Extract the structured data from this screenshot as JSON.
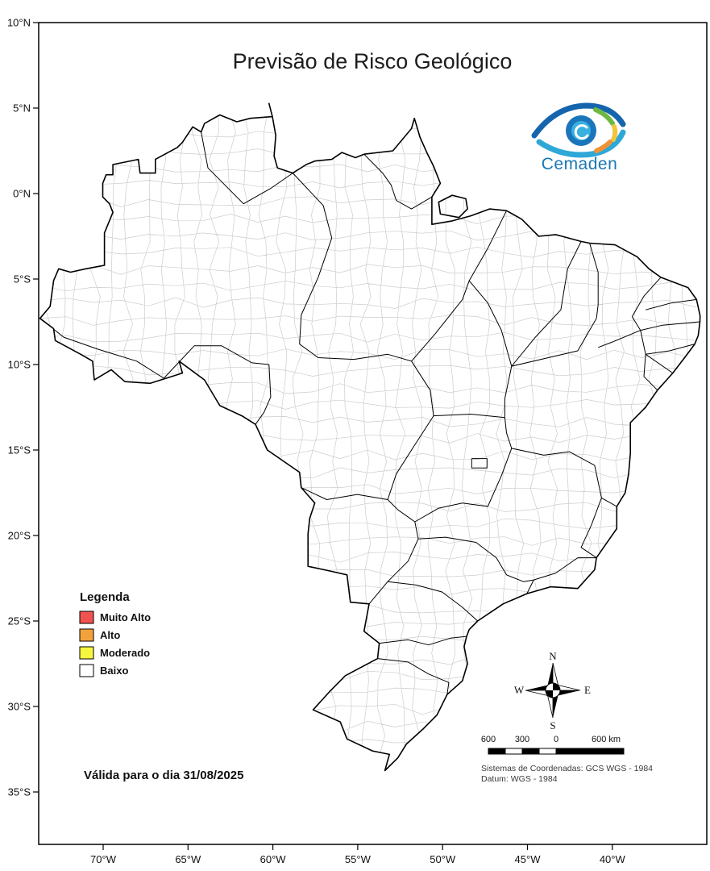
{
  "title": "Previsão de Risco Geológico",
  "logo": {
    "text": "Cemaden"
  },
  "legend": {
    "title": "Legenda",
    "items": [
      {
        "label": "Muito Alto",
        "color": "#f0524f"
      },
      {
        "label": "Alto",
        "color": "#f2a23d"
      },
      {
        "label": "Moderado",
        "color": "#f6f63f"
      },
      {
        "label": "Baixo",
        "color": "#ffffff"
      }
    ]
  },
  "validity_text": "Válida para o dia 31/08/2025",
  "compass": {
    "north": "N",
    "south": "S",
    "east": "E",
    "west": "W"
  },
  "scale_bar": {
    "ticks": [
      "600",
      "300",
      "0",
      "600 km"
    ]
  },
  "crs_lines": [
    "Sistemas de Coordenadas: GCS WGS - 1984",
    "Datum: WGS - 1984"
  ],
  "axis": {
    "latitudes": [
      "10°N",
      "5°N",
      "0°N",
      "5°S",
      "10°S",
      "15°S",
      "20°S",
      "25°S",
      "30°S",
      "35°S"
    ],
    "longitudes": [
      "70°W",
      "65°W",
      "60°W",
      "55°W",
      "50°W",
      "45°W",
      "40°W"
    ]
  },
  "map_shapes": {
    "country": [
      [
        5.27,
        -60.2
      ],
      [
        4.5,
        -60.0
      ],
      [
        4.4,
        -61.3
      ],
      [
        4.2,
        -62.1
      ],
      [
        4.6,
        -63.1
      ],
      [
        4.1,
        -64.0
      ],
      [
        3.6,
        -64.2
      ],
      [
        3.9,
        -64.7
      ],
      [
        3.0,
        -65.3
      ],
      [
        2.7,
        -65.6
      ],
      [
        2.0,
        -66.9
      ],
      [
        1.2,
        -66.9
      ],
      [
        1.2,
        -67.8
      ],
      [
        2.0,
        -67.9
      ],
      [
        1.7,
        -69.4
      ],
      [
        1.1,
        -69.4
      ],
      [
        1.1,
        -69.8
      ],
      [
        0.6,
        -70.0
      ],
      [
        -0.2,
        -70.0
      ],
      [
        -0.6,
        -69.6
      ],
      [
        -1.1,
        -69.4
      ],
      [
        -2.3,
        -69.9
      ],
      [
        -4.2,
        -69.9
      ],
      [
        -4.4,
        -71.0
      ],
      [
        -4.6,
        -71.9
      ],
      [
        -4.4,
        -72.6
      ],
      [
        -5.1,
        -72.9
      ],
      [
        -6.6,
        -73.1
      ],
      [
        -7.3,
        -73.7
      ],
      [
        -7.9,
        -72.9
      ],
      [
        -8.6,
        -72.8
      ],
      [
        -9.4,
        -71.3
      ],
      [
        -9.8,
        -70.6
      ],
      [
        -10.9,
        -70.5
      ],
      [
        -10.3,
        -69.5
      ],
      [
        -11.0,
        -68.7
      ],
      [
        -11.1,
        -67.2
      ],
      [
        -10.5,
        -65.3
      ],
      [
        -9.8,
        -65.5
      ],
      [
        -10.9,
        -64.0
      ],
      [
        -12.4,
        -63.1
      ],
      [
        -13.0,
        -61.8
      ],
      [
        -13.5,
        -61.0
      ],
      [
        -15.0,
        -60.3
      ],
      [
        -16.3,
        -58.4
      ],
      [
        -17.2,
        -58.3
      ],
      [
        -18.1,
        -57.5
      ],
      [
        -19.0,
        -57.8
      ],
      [
        -19.9,
        -57.9
      ],
      [
        -21.8,
        -57.9
      ],
      [
        -22.1,
        -56.5
      ],
      [
        -22.3,
        -55.6
      ],
      [
        -23.9,
        -55.4
      ],
      [
        -24.0,
        -54.3
      ],
      [
        -25.6,
        -54.6
      ],
      [
        -26.3,
        -53.7
      ],
      [
        -27.2,
        -53.8
      ],
      [
        -28.2,
        -55.7
      ],
      [
        -29.1,
        -56.6
      ],
      [
        -30.2,
        -57.6
      ],
      [
        -30.9,
        -56.0
      ],
      [
        -31.9,
        -55.6
      ],
      [
        -32.6,
        -54.1
      ],
      [
        -32.8,
        -53.1
      ],
      [
        -33.75,
        -53.37
      ],
      [
        -33.0,
        -52.6
      ],
      [
        -32.2,
        -52.1
      ],
      [
        -31.3,
        -51.1
      ],
      [
        -30.5,
        -50.3
      ],
      [
        -29.3,
        -49.7
      ],
      [
        -28.5,
        -48.8
      ],
      [
        -27.5,
        -48.5
      ],
      [
        -26.5,
        -48.7
      ],
      [
        -25.9,
        -48.55
      ],
      [
        -25.5,
        -48.4
      ],
      [
        -25.0,
        -47.9
      ],
      [
        -24.0,
        -46.4
      ],
      [
        -23.4,
        -45.0
      ],
      [
        -23.0,
        -43.6
      ],
      [
        -23.1,
        -42.0
      ],
      [
        -22.0,
        -41.0
      ],
      [
        -21.3,
        -40.9
      ],
      [
        -20.3,
        -40.2
      ],
      [
        -19.6,
        -39.7
      ],
      [
        -18.3,
        -39.7
      ],
      [
        -17.5,
        -39.2
      ],
      [
        -16.4,
        -39.0
      ],
      [
        -15.2,
        -38.9
      ],
      [
        -13.4,
        -38.9
      ],
      [
        -13.0,
        -38.5
      ],
      [
        -12.5,
        -38.0
      ],
      [
        -11.5,
        -37.3
      ],
      [
        -10.5,
        -36.4
      ],
      [
        -9.6,
        -35.7
      ],
      [
        -8.8,
        -35.1
      ],
      [
        -8.3,
        -34.9
      ],
      [
        -7.5,
        -34.8
      ],
      [
        -7.15,
        -34.79
      ],
      [
        -6.2,
        -35.0
      ],
      [
        -5.5,
        -35.5
      ],
      [
        -4.9,
        -37.1
      ],
      [
        -4.4,
        -37.8
      ],
      [
        -3.7,
        -38.5
      ],
      [
        -3.0,
        -39.8
      ],
      [
        -2.9,
        -41.3
      ],
      [
        -2.8,
        -41.8
      ],
      [
        -2.4,
        -43.3
      ],
      [
        -2.5,
        -44.3
      ],
      [
        -1.5,
        -45.3
      ],
      [
        -1.0,
        -46.2
      ],
      [
        -0.9,
        -47.2
      ],
      [
        -1.3,
        -48.3
      ],
      [
        -1.6,
        -49.4
      ],
      [
        -1.8,
        -50.6
      ],
      [
        -0.2,
        -50.6
      ],
      [
        0.6,
        -50.1
      ],
      [
        1.6,
        -50.5
      ],
      [
        2.4,
        -50.9
      ],
      [
        3.3,
        -51.3
      ],
      [
        4.4,
        -51.63
      ],
      [
        3.8,
        -51.8
      ],
      [
        2.5,
        -52.9
      ],
      [
        2.3,
        -54.6
      ],
      [
        2.1,
        -55.1
      ],
      [
        2.4,
        -55.9
      ],
      [
        2.0,
        -56.5
      ],
      [
        1.9,
        -57.5
      ],
      [
        1.7,
        -58.0
      ],
      [
        1.2,
        -58.8
      ],
      [
        1.5,
        -59.7
      ],
      [
        2.2,
        -59.9
      ],
      [
        3.4,
        -59.8
      ],
      [
        4.5,
        -60.0
      ]
    ],
    "island": [
      [
        -0.3,
        -48.6
      ],
      [
        -0.9,
        -48.5
      ],
      [
        -1.4,
        -49.0
      ],
      [
        -1.2,
        -50.1
      ],
      [
        -0.5,
        -50.2
      ],
      [
        -0.1,
        -49.4
      ]
    ],
    "states": [
      [
        [
          3.6,
          -64.2
        ],
        [
          1.5,
          -63.8
        ],
        [
          -0.6,
          -61.7
        ],
        [
          0.3,
          -60.1
        ],
        [
          1.2,
          -58.8
        ]
      ],
      [
        [
          1.2,
          -58.8
        ],
        [
          -0.7,
          -57.0
        ],
        [
          -2.6,
          -56.5
        ],
        [
          -4.9,
          -57.3
        ],
        [
          -7.1,
          -58.3
        ]
      ],
      [
        [
          -7.1,
          -58.3
        ],
        [
          -8.8,
          -58.4
        ],
        [
          -9.6,
          -57.3
        ],
        [
          -9.7,
          -55.2
        ],
        [
          -9.4,
          -53.2
        ],
        [
          -9.8,
          -51.8
        ]
      ],
      [
        [
          -9.8,
          -51.8
        ],
        [
          -8.2,
          -50.4
        ],
        [
          -6.2,
          -48.8
        ],
        [
          -5.1,
          -48.4
        ],
        [
          -3.2,
          -47.3
        ],
        [
          -1.0,
          -46.2
        ]
      ],
      [
        [
          -7.3,
          -73.7
        ],
        [
          -8.4,
          -72.3
        ],
        [
          -9.1,
          -70.3
        ],
        [
          -9.8,
          -68.0
        ],
        [
          -10.8,
          -66.4
        ]
      ],
      [
        [
          -10.8,
          -66.4
        ],
        [
          -8.9,
          -64.6
        ],
        [
          -8.9,
          -63.0
        ],
        [
          -9.9,
          -61.2
        ],
        [
          -10.0,
          -60.2
        ]
      ],
      [
        [
          -10.0,
          -60.2
        ],
        [
          -11.9,
          -60.1
        ],
        [
          -12.8,
          -60.5
        ],
        [
          -13.5,
          -61.0
        ]
      ],
      [
        [
          -9.8,
          -51.8
        ],
        [
          -11.5,
          -50.7
        ],
        [
          -13.0,
          -50.5
        ],
        [
          -15.0,
          -51.8
        ],
        [
          -16.4,
          -52.7
        ],
        [
          -17.9,
          -53.2
        ]
      ],
      [
        [
          -17.9,
          -53.2
        ],
        [
          -17.6,
          -55.0
        ],
        [
          -17.9,
          -56.8
        ],
        [
          -17.2,
          -58.3
        ]
      ],
      [
        [
          -5.1,
          -48.4
        ],
        [
          -6.4,
          -47.3
        ],
        [
          -8.0,
          -46.5
        ],
        [
          -10.1,
          -45.9
        ],
        [
          -12.0,
          -46.3
        ],
        [
          -13.1,
          -46.3
        ]
      ],
      [
        [
          -13.1,
          -46.3
        ],
        [
          -12.9,
          -48.3
        ],
        [
          -13.0,
          -50.5
        ]
      ],
      [
        [
          -2.8,
          -41.8
        ],
        [
          -4.4,
          -42.6
        ],
        [
          -6.8,
          -43.0
        ],
        [
          -8.4,
          -44.5
        ],
        [
          -10.1,
          -45.9
        ]
      ],
      [
        [
          -2.9,
          -41.3
        ],
        [
          -4.6,
          -40.8
        ],
        [
          -6.5,
          -40.8
        ],
        [
          -7.3,
          -40.9
        ]
      ],
      [
        [
          -7.3,
          -40.9
        ],
        [
          -9.2,
          -42.0
        ],
        [
          -10.1,
          -45.9
        ]
      ],
      [
        [
          -4.9,
          -37.1
        ],
        [
          -6.0,
          -38.1
        ],
        [
          -7.2,
          -38.8
        ]
      ],
      [
        [
          -6.2,
          -35.0
        ],
        [
          -6.4,
          -36.5
        ],
        [
          -6.8,
          -38.0
        ]
      ],
      [
        [
          -7.5,
          -34.8
        ],
        [
          -7.7,
          -37.0
        ],
        [
          -8.0,
          -38.3
        ],
        [
          -7.2,
          -38.8
        ]
      ],
      [
        [
          -8.0,
          -38.3
        ],
        [
          -8.7,
          -40.0
        ],
        [
          -9.0,
          -40.8
        ]
      ],
      [
        [
          -8.8,
          -35.1
        ],
        [
          -9.2,
          -36.6
        ],
        [
          -9.4,
          -38.0
        ],
        [
          -8.0,
          -38.3
        ]
      ],
      [
        [
          -9.4,
          -38.0
        ],
        [
          -10.5,
          -36.4
        ]
      ],
      [
        [
          -9.4,
          -38.0
        ],
        [
          -10.7,
          -38.1
        ],
        [
          -11.5,
          -37.3
        ]
      ],
      [
        [
          -13.1,
          -46.3
        ],
        [
          -14.0,
          -46.2
        ],
        [
          -14.9,
          -45.9
        ]
      ],
      [
        [
          -14.9,
          -45.9
        ],
        [
          -15.3,
          -44.0
        ],
        [
          -15.1,
          -42.5
        ],
        [
          -15.9,
          -41.0
        ],
        [
          -17.8,
          -40.6
        ],
        [
          -18.3,
          -39.7
        ]
      ],
      [
        [
          -14.9,
          -45.9
        ],
        [
          -16.5,
          -46.5
        ],
        [
          -18.3,
          -47.3
        ],
        [
          -18.1,
          -48.8
        ],
        [
          -18.4,
          -50.2
        ],
        [
          -19.2,
          -51.6
        ]
      ],
      [
        [
          -17.9,
          -53.2
        ],
        [
          -18.5,
          -52.6
        ],
        [
          -19.2,
          -51.6
        ]
      ],
      [
        [
          -19.2,
          -51.6
        ],
        [
          -20.2,
          -51.4
        ],
        [
          -21.5,
          -52.0
        ],
        [
          -22.7,
          -53.2
        ],
        [
          -24.0,
          -54.3
        ]
      ],
      [
        [
          -20.2,
          -51.4
        ],
        [
          -20.1,
          -49.8
        ],
        [
          -20.4,
          -48.0
        ],
        [
          -21.3,
          -46.8
        ],
        [
          -22.3,
          -46.2
        ],
        [
          -22.7,
          -45.2
        ],
        [
          -22.6,
          -44.6
        ]
      ],
      [
        [
          -22.6,
          -44.6
        ],
        [
          -22.2,
          -43.3
        ],
        [
          -21.3,
          -42.0
        ],
        [
          -21.3,
          -40.9
        ]
      ],
      [
        [
          -22.6,
          -44.6
        ],
        [
          -23.4,
          -45.0
        ]
      ],
      [
        [
          -17.8,
          -40.6
        ],
        [
          -19.4,
          -41.2
        ],
        [
          -20.7,
          -41.8
        ],
        [
          -21.3,
          -40.9
        ]
      ],
      [
        [
          -22.7,
          -53.2
        ],
        [
          -22.9,
          -51.5
        ],
        [
          -23.3,
          -50.0
        ],
        [
          -24.2,
          -48.8
        ],
        [
          -25.0,
          -47.9
        ]
      ],
      [
        [
          -26.3,
          -53.7
        ],
        [
          -26.1,
          -52.0
        ],
        [
          -26.4,
          -50.8
        ],
        [
          -26.0,
          -49.5
        ],
        [
          -25.9,
          -48.55
        ]
      ],
      [
        [
          -27.2,
          -53.8
        ],
        [
          -27.4,
          -52.0
        ],
        [
          -28.1,
          -50.8
        ],
        [
          -28.6,
          -49.6
        ],
        [
          -29.3,
          -49.7
        ]
      ],
      [
        [
          -15.5,
          -48.25
        ],
        [
          -15.5,
          -47.35
        ],
        [
          -16.05,
          -47.35
        ],
        [
          -16.05,
          -48.25
        ],
        [
          -15.5,
          -48.25
        ]
      ],
      [
        [
          -0.2,
          -50.6
        ],
        [
          -0.9,
          -51.8
        ],
        [
          -0.4,
          -52.7
        ],
        [
          0.5,
          -53.0
        ],
        [
          1.2,
          -53.5
        ],
        [
          2.3,
          -54.6
        ]
      ]
    ]
  }
}
